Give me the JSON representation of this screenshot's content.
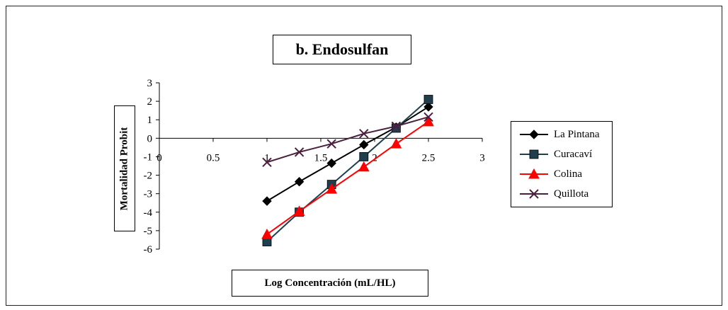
{
  "chart_data": {
    "type": "line",
    "title": "b. Endosulfan",
    "xlabel": "Log Concentración (mL/HL)",
    "ylabel": "Mortalidad Probit",
    "xlim": [
      0,
      3
    ],
    "ylim": [
      -6,
      3
    ],
    "xticks": [
      "0",
      "0.5",
      "1",
      "1.5",
      "2",
      "2.5",
      "3"
    ],
    "yticks": [
      "3",
      "2",
      "1",
      "0",
      "-1",
      "-2",
      "-3",
      "-4",
      "-5",
      "-6"
    ],
    "grid": false,
    "legend_position": "right",
    "series": [
      {
        "name": "La Pintana",
        "color": "#000000",
        "marker": "diamond",
        "x": [
          1.0,
          1.3,
          1.6,
          1.9,
          2.2,
          2.5
        ],
        "y": [
          -3.4,
          -2.35,
          -1.35,
          -0.35,
          0.6,
          1.7
        ]
      },
      {
        "name": "Curacaví",
        "color": "#1f3f4f",
        "marker": "square",
        "x": [
          1.0,
          1.3,
          1.6,
          1.9,
          2.2,
          2.5
        ],
        "y": [
          -5.6,
          -4.0,
          -2.5,
          -1.0,
          0.55,
          2.1
        ]
      },
      {
        "name": "Colina",
        "color": "#ff0000",
        "marker": "triangle",
        "x": [
          1.0,
          1.3,
          1.6,
          1.9,
          2.2,
          2.5
        ],
        "y": [
          -5.2,
          -3.95,
          -2.75,
          -1.55,
          -0.3,
          0.9
        ]
      },
      {
        "name": "Quillota",
        "color": "#4b1f3f",
        "marker": "x",
        "x": [
          1.0,
          1.3,
          1.6,
          1.9,
          2.2,
          2.5
        ],
        "y": [
          -1.3,
          -0.75,
          -0.3,
          0.25,
          0.65,
          1.15
        ]
      }
    ]
  }
}
